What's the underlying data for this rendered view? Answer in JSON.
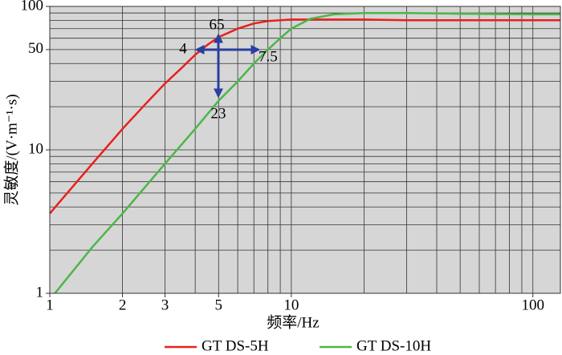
{
  "chart_data": {
    "type": "line",
    "xlog": true,
    "ylog": true,
    "grid": true,
    "legend": "bottom",
    "xlabel": "频率/Hz",
    "ylabel": "灵敏度/(V·m⁻¹·s)",
    "xlim": [
      1,
      130
    ],
    "ylim": [
      1,
      100
    ],
    "xticks": [
      1,
      2,
      3,
      5,
      10,
      100
    ],
    "yticks": [
      1,
      10,
      50,
      100
    ],
    "xgrid": [
      1,
      2,
      3,
      4,
      5,
      6,
      7,
      8,
      9,
      10,
      20,
      30,
      40,
      50,
      60,
      70,
      80,
      90,
      100
    ],
    "ygrid": [
      1,
      2,
      3,
      4,
      5,
      6,
      7,
      8,
      9,
      10,
      20,
      30,
      40,
      50,
      60,
      70,
      80,
      90,
      100
    ],
    "series": [
      {
        "name": "GT DS-5H",
        "color": "#e8201c",
        "x": [
          1,
          1.5,
          2,
          2.5,
          3,
          3.5,
          4,
          4.5,
          5,
          6,
          7,
          8,
          10,
          15,
          20,
          30,
          50,
          100,
          130
        ],
        "values": [
          3.6,
          8,
          14,
          21,
          29,
          37,
          46,
          54,
          61,
          70,
          76,
          79,
          81,
          81,
          81,
          80,
          80,
          80,
          80
        ]
      },
      {
        "name": "GT DS-10H",
        "color": "#4cb648",
        "x": [
          1.05,
          1.5,
          2,
          3,
          4,
          5,
          6,
          7,
          8,
          9,
          10,
          12,
          15,
          20,
          30,
          50,
          100,
          130
        ],
        "values": [
          1,
          2.1,
          3.6,
          8,
          14,
          22,
          30,
          40,
          50,
          60,
          70,
          82,
          88,
          90,
          90,
          89,
          88,
          88
        ]
      }
    ],
    "annotations": [
      "65",
      "4",
      "7.5",
      "23"
    ]
  }
}
